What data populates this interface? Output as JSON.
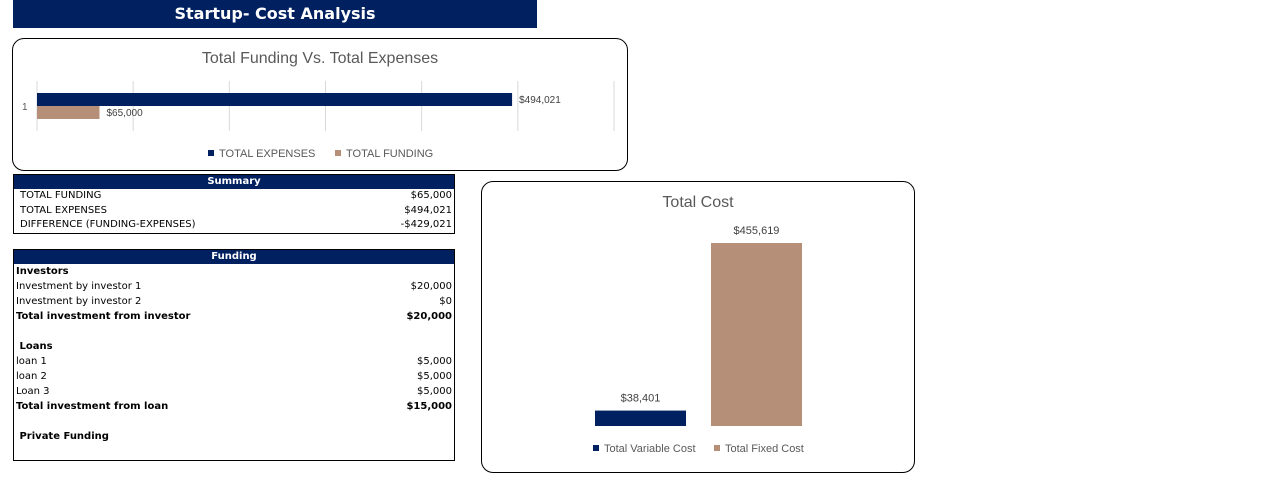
{
  "page_title": "Startup- Cost Analysis",
  "summary": {
    "header": "Summary",
    "rows": [
      {
        "label": "TOTAL FUNDING",
        "value": "$65,000"
      },
      {
        "label": "TOTAL EXPENSES",
        "value": "$494,021"
      },
      {
        "label": "DIFFERENCE (FUNDING-EXPENSES)",
        "value": "-$429,021"
      }
    ]
  },
  "funding": {
    "header": "Funding",
    "rows": [
      {
        "label": "Investors",
        "value": "",
        "bold": true
      },
      {
        "label": "Investment by investor 1",
        "value": "$20,000"
      },
      {
        "label": "Investment by investor 2",
        "value": "$0"
      },
      {
        "label": "Total investment from investor",
        "value": "$20,000",
        "bold": true
      },
      {
        "label": "",
        "value": ""
      },
      {
        "label": " Loans",
        "value": "",
        "bold": true
      },
      {
        "label": "loan 1",
        "value": "$5,000"
      },
      {
        "label": "loan 2",
        "value": "$5,000"
      },
      {
        "label": "Loan 3",
        "value": "$5,000"
      },
      {
        "label": "Total investment from loan",
        "value": "$15,000",
        "bold": true
      },
      {
        "label": "",
        "value": ""
      },
      {
        "label": " Private Funding",
        "value": "",
        "bold": true
      }
    ]
  },
  "colors": {
    "navy": "#002060",
    "tan": "#B58F78",
    "grid": "#d9d9d9",
    "text": "#595959"
  },
  "chart_data": [
    {
      "type": "bar",
      "orientation": "horizontal",
      "title": "Total Funding Vs. Total Expenses",
      "categories": [
        "1"
      ],
      "series": [
        {
          "name": "TOTAL EXPENSES",
          "values": [
            494021
          ],
          "labels": [
            "$494,021"
          ],
          "color": "#002060"
        },
        {
          "name": "TOTAL FUNDING",
          "values": [
            65000
          ],
          "labels": [
            "$65,000"
          ],
          "color": "#B58F78"
        }
      ],
      "xlim": [
        0,
        600000
      ],
      "grid": true,
      "legend": "bottom"
    },
    {
      "type": "bar",
      "title": "Total Cost",
      "categories": [
        "Total Variable Cost",
        "Total Fixed Cost"
      ],
      "values": [
        38401,
        455619
      ],
      "labels": [
        "$38,401",
        "$455,619"
      ],
      "colors": [
        "#002060",
        "#B58F78"
      ],
      "grid": false,
      "legend": "bottom"
    }
  ]
}
